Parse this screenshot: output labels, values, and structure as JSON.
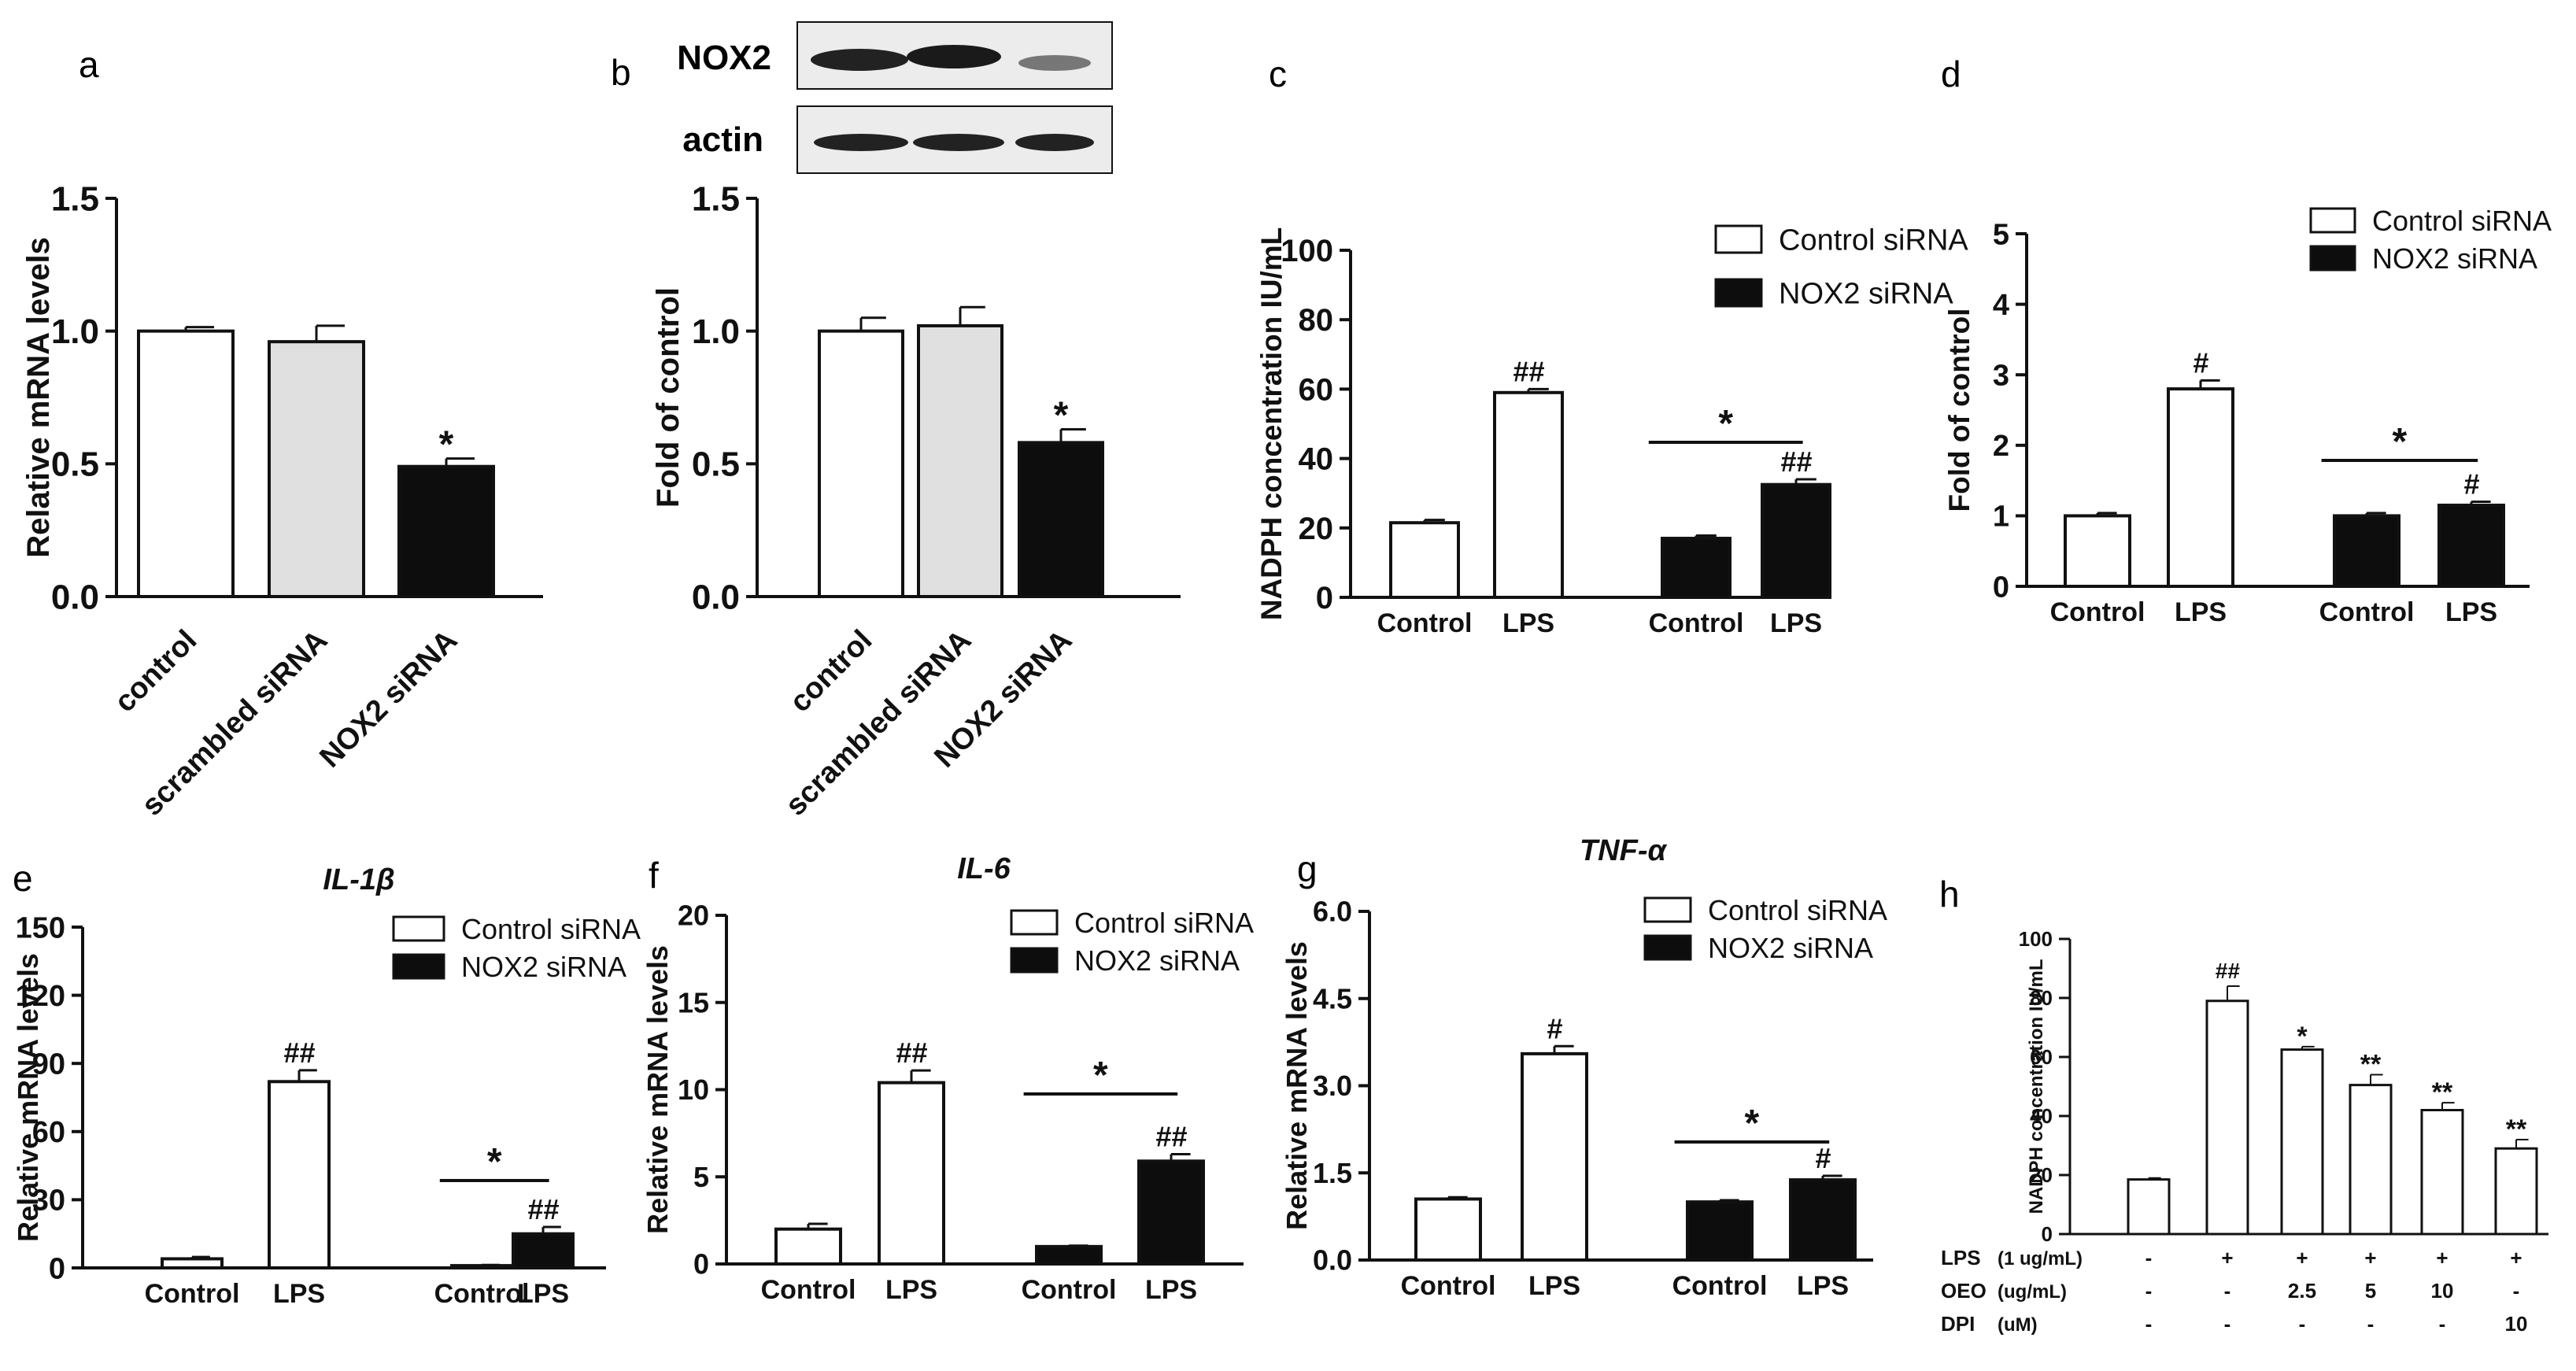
{
  "colors": {
    "white_bar": "#ffffff",
    "grey_bar": "#e0e0e0",
    "black_bar": "#0d0d0d",
    "ink": "#111111"
  },
  "chart_data": [
    {
      "panel": "a",
      "type": "bar",
      "ylabel": "Relative mRNA levels",
      "categories": [
        "control",
        "scrambled siRNA",
        "NOX2 siRNA"
      ],
      "values": [
        1.0,
        0.96,
        0.49
      ],
      "errors": [
        0.015,
        0.06,
        0.03
      ],
      "fills": [
        "white",
        "grey",
        "black"
      ],
      "marks": [
        "",
        "",
        "*"
      ],
      "ylim": [
        0,
        1.5
      ],
      "yticks": [
        "0.0",
        "0.5",
        "1.0",
        "1.5"
      ],
      "grid": false
    },
    {
      "panel": "b",
      "type": "bar",
      "ylabel": "Fold of control",
      "categories": [
        "control",
        "scrambled siRNA",
        "NOX2 siRNA"
      ],
      "values": [
        1.0,
        1.02,
        0.58
      ],
      "errors": [
        0.05,
        0.07,
        0.05
      ],
      "fills": [
        "white",
        "grey",
        "black"
      ],
      "marks": [
        "",
        "",
        "*"
      ],
      "ylim": [
        0,
        1.5
      ],
      "yticks": [
        "0.0",
        "0.5",
        "1.0",
        "1.5"
      ],
      "blot_labels": [
        "NOX2",
        "actin"
      ],
      "grid": false
    },
    {
      "panel": "c",
      "type": "bar",
      "ylabel": "NADPH concentration IU/mL",
      "x_labels": [
        "Control",
        "LPS",
        "Control",
        "LPS"
      ],
      "series": [
        {
          "name": "Control siRNA",
          "values": [
            21.5,
            59.0
          ]
        },
        {
          "name": "NOX2 siRNA",
          "values": [
            17.0,
            32.5
          ]
        }
      ],
      "errors": [
        0.8,
        1.0,
        0.8,
        1.5
      ],
      "marks": [
        "",
        "##",
        "",
        "##"
      ],
      "bracket": "*",
      "ylim": [
        0,
        100
      ],
      "yticks": [
        "0",
        "20",
        "40",
        "60",
        "80",
        "100"
      ],
      "legend": "top-right",
      "grid": false
    },
    {
      "panel": "d",
      "type": "bar",
      "ylabel": "Fold of control",
      "x_labels": [
        "Control",
        "LPS",
        "Control",
        "LPS"
      ],
      "series": [
        {
          "name": "Control siRNA",
          "values": [
            1.0,
            2.8
          ]
        },
        {
          "name": "NOX2 siRNA",
          "values": [
            1.0,
            1.15
          ]
        }
      ],
      "errors": [
        0.04,
        0.12,
        0.04,
        0.05
      ],
      "marks": [
        "",
        "#",
        "",
        "#"
      ],
      "bracket": "*",
      "ylim": [
        0,
        5
      ],
      "yticks": [
        "0",
        "1",
        "2",
        "3",
        "4",
        "5"
      ],
      "legend": "top-right",
      "grid": false
    },
    {
      "panel": "e",
      "type": "bar",
      "title": "IL-1β",
      "ylabel": "Relative mRNA levels",
      "x_labels": [
        "Control",
        "LPS",
        "Control",
        "LPS"
      ],
      "series": [
        {
          "name": "Control siRNA",
          "values": [
            4.0,
            82.0
          ]
        },
        {
          "name": "NOX2 siRNA",
          "values": [
            1.0,
            15.0
          ]
        }
      ],
      "errors": [
        0.8,
        5.0,
        0.3,
        3.0
      ],
      "marks": [
        "",
        "##",
        "",
        "##"
      ],
      "bracket": "*",
      "ylim": [
        0,
        150
      ],
      "yticks": [
        "0",
        "30",
        "60",
        "90",
        "120",
        "150"
      ],
      "legend": "top-right",
      "grid": false
    },
    {
      "panel": "f",
      "type": "bar",
      "title": "IL-6",
      "ylabel": "Relative mRNA levels",
      "x_labels": [
        "Control",
        "LPS",
        "Control",
        "LPS"
      ],
      "series": [
        {
          "name": "Control siRNA",
          "values": [
            2.0,
            10.4
          ]
        },
        {
          "name": "NOX2 siRNA",
          "values": [
            1.0,
            5.9
          ]
        }
      ],
      "errors": [
        0.3,
        0.7,
        0.05,
        0.4
      ],
      "marks": [
        "",
        "##",
        "",
        "##"
      ],
      "bracket": "*",
      "ylim": [
        0,
        20
      ],
      "yticks": [
        "0",
        "5",
        "10",
        "15",
        "20"
      ],
      "legend": "top-right",
      "grid": false
    },
    {
      "panel": "g",
      "type": "bar",
      "title": "TNF-α",
      "ylabel": "Relative mRNA levels",
      "x_labels": [
        "Control",
        "LPS",
        "Control",
        "LPS"
      ],
      "series": [
        {
          "name": "Control siRNA",
          "values": [
            1.05,
            3.55
          ]
        },
        {
          "name": "NOX2 siRNA",
          "values": [
            1.0,
            1.38
          ]
        }
      ],
      "errors": [
        0.03,
        0.13,
        0.03,
        0.07
      ],
      "marks": [
        "",
        "#",
        "",
        "#"
      ],
      "bracket": "*",
      "ylim": [
        0,
        6
      ],
      "yticks": [
        "0.0",
        "1.5",
        "3.0",
        "4.5",
        "6.0"
      ],
      "legend": "top-right",
      "grid": false
    },
    {
      "panel": "h",
      "type": "bar",
      "ylabel": "NADPH concentration IU/mL",
      "values": [
        18.5,
        79.0,
        62.5,
        50.5,
        42.0,
        29.0
      ],
      "errors": [
        0.5,
        5.0,
        1.0,
        3.5,
        2.5,
        3.0
      ],
      "marks": [
        "",
        "##",
        "*",
        "**",
        "**",
        "**"
      ],
      "ylim": [
        0,
        100
      ],
      "yticks": [
        "0",
        "20",
        "40",
        "60",
        "80",
        "100"
      ],
      "grid": false,
      "condition_rows": [
        {
          "name": "LPS",
          "unit": "(1 ug/mL)",
          "cells": [
            "-",
            "+",
            "+",
            "+",
            "+",
            "+"
          ]
        },
        {
          "name": "OEO",
          "unit": "(ug/mL)",
          "cells": [
            "-",
            "-",
            "2.5",
            "5",
            "10",
            "-"
          ]
        },
        {
          "name": "DPI",
          "unit": "(uM)",
          "cells": [
            "-",
            "-",
            "-",
            "-",
            "-",
            "10"
          ]
        }
      ]
    }
  ]
}
